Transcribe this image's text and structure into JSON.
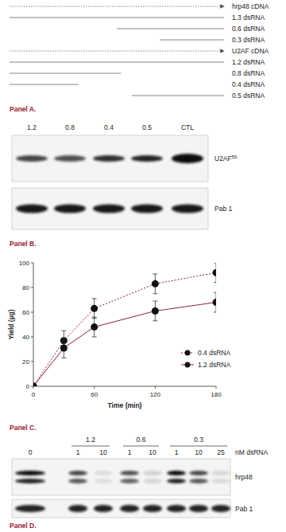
{
  "panel_a": {
    "label": "Panel A.",
    "rows": [
      {
        "text": "hrp48 cDNA",
        "line_style": "dotted"
      },
      {
        "text": "1.3 dsRNA",
        "line_style": "solid"
      },
      {
        "text": "0.6 dsRNA",
        "line_style": "solid"
      },
      {
        "text": "0.3 dsRNA",
        "line_style": "solid"
      },
      {
        "text": "U2AF cDNA",
        "line_style": "dotted"
      },
      {
        "text": "1.2 dsRNA",
        "line_style": "solid"
      },
      {
        "text": "0.8 dsRNA",
        "line_style": "solid"
      },
      {
        "text": "0.4 dsRNA",
        "line_style": "solid"
      },
      {
        "text": "0.5 dsRNA",
        "line_style": "solid"
      }
    ]
  },
  "panel_b": {
    "label": "Panel B.",
    "lanes": [
      "1.2",
      "0.8",
      "0.4",
      "0.5",
      "CTL"
    ],
    "blots": [
      {
        "label": "U2AF",
        "superscript": "50"
      },
      {
        "label": "Pab 1"
      }
    ]
  },
  "chart_data": {
    "type": "line",
    "label": "Panel C.",
    "x_label": "Time (min)",
    "y_label": "Yield (µg)",
    "x": [
      0,
      30,
      60,
      120,
      180
    ],
    "series": [
      {
        "name": "0.4 dsRNA",
        "color": "#8a2232",
        "line_style": "dotted",
        "marker": "circle",
        "values": [
          0,
          37,
          63,
          83,
          92
        ],
        "errors": [
          null,
          8,
          8,
          8,
          8
        ]
      },
      {
        "name": "1.2 dsRNA",
        "color": "#8a2232",
        "line_style": "solid",
        "marker": "circle",
        "values": [
          0,
          31,
          48,
          61,
          68
        ],
        "errors": [
          null,
          8,
          8,
          8,
          8
        ]
      }
    ],
    "xlim": [
      0,
      180
    ],
    "xticks": [
      0,
      60,
      120,
      180
    ],
    "ylim": [
      0,
      100
    ],
    "yticks": [
      0,
      20,
      40,
      60,
      80,
      100
    ],
    "legend": "lower right"
  },
  "panel_d": {
    "label": "Panel D.",
    "control": 0,
    "groups": [
      {
        "label": "1.2",
        "doses": [
          1,
          10
        ]
      },
      {
        "label": "0.6",
        "doses": [
          1,
          10
        ]
      },
      {
        "label": "0.3",
        "doses": [
          1,
          10,
          25
        ]
      }
    ],
    "unit": "nM dsRNA",
    "blots": [
      "hrp48",
      "Pab 1"
    ]
  }
}
